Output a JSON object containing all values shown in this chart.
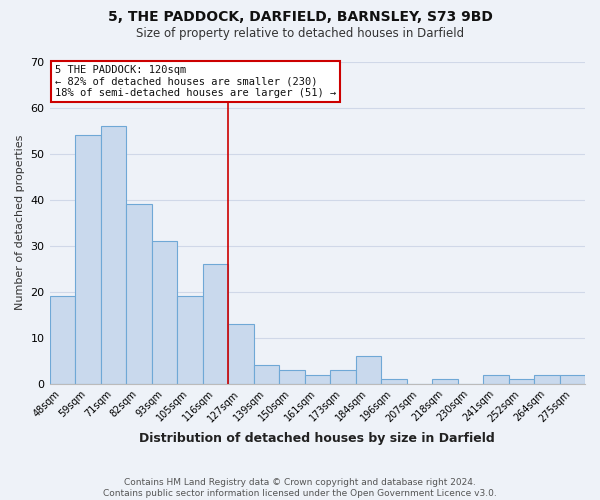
{
  "title": "5, THE PADDOCK, DARFIELD, BARNSLEY, S73 9BD",
  "subtitle": "Size of property relative to detached houses in Darfield",
  "xlabel": "Distribution of detached houses by size in Darfield",
  "ylabel": "Number of detached properties",
  "footer_line1": "Contains HM Land Registry data © Crown copyright and database right 2024.",
  "footer_line2": "Contains public sector information licensed under the Open Government Licence v3.0.",
  "bin_labels": [
    "48sqm",
    "59sqm",
    "71sqm",
    "82sqm",
    "93sqm",
    "105sqm",
    "116sqm",
    "127sqm",
    "139sqm",
    "150sqm",
    "161sqm",
    "173sqm",
    "184sqm",
    "196sqm",
    "207sqm",
    "218sqm",
    "230sqm",
    "241sqm",
    "252sqm",
    "264sqm",
    "275sqm"
  ],
  "bar_heights": [
    19,
    54,
    56,
    39,
    31,
    19,
    26,
    13,
    4,
    3,
    2,
    3,
    6,
    1,
    0,
    1,
    0,
    2,
    1,
    2,
    2
  ],
  "bar_color": "#c9d9ed",
  "bar_edge_color": "#6fa8d6",
  "grid_color": "#d0d8e8",
  "background_color": "#eef2f8",
  "vline_x_index": 6,
  "vline_color": "#cc0000",
  "annotation_title": "5 THE PADDOCK: 120sqm",
  "annotation_line1": "← 82% of detached houses are smaller (230)",
  "annotation_line2": "18% of semi-detached houses are larger (51) →",
  "annotation_box_color": "#ffffff",
  "annotation_box_edge_color": "#cc0000",
  "ylim": [
    0,
    70
  ],
  "yticks": [
    0,
    10,
    20,
    30,
    40,
    50,
    60,
    70
  ],
  "title_fontsize": 10,
  "subtitle_fontsize": 8.5,
  "footer_fontsize": 6.5
}
